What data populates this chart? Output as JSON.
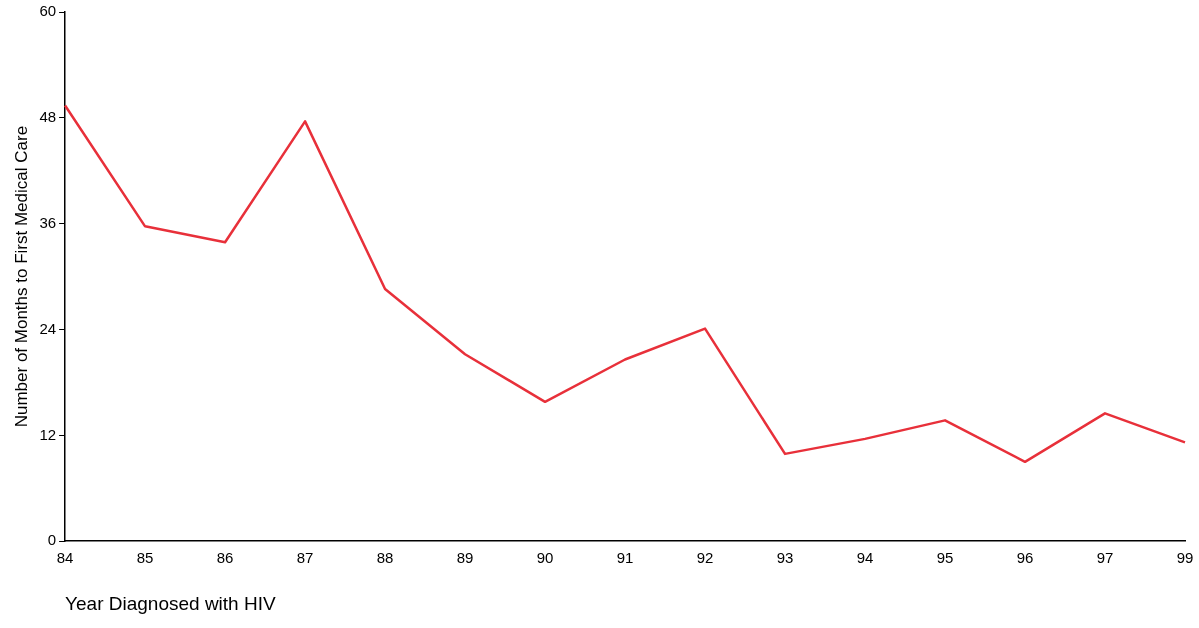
{
  "chart_data": {
    "type": "line",
    "xlabel": "Year Diagnosed with HIV",
    "ylabel": "Number of Months to First Medical Care",
    "categories": [
      "84",
      "85",
      "86",
      "87",
      "88",
      "89",
      "90",
      "91",
      "92",
      "93",
      "94",
      "95",
      "96",
      "97",
      "99"
    ],
    "series": [
      {
        "color": "#e8303a",
        "values": [
          49.4,
          35.7,
          33.9,
          47.6,
          28.6,
          21.2,
          15.8,
          20.6,
          24.1,
          9.9,
          11.6,
          13.7,
          9.0,
          14.5,
          11.2
        ]
      }
    ],
    "ylim": [
      0,
      60
    ],
    "yticks": [
      0,
      12,
      24,
      36,
      48,
      60
    ],
    "grid": false,
    "legend": false,
    "marker": "none",
    "line_style": "solid"
  }
}
